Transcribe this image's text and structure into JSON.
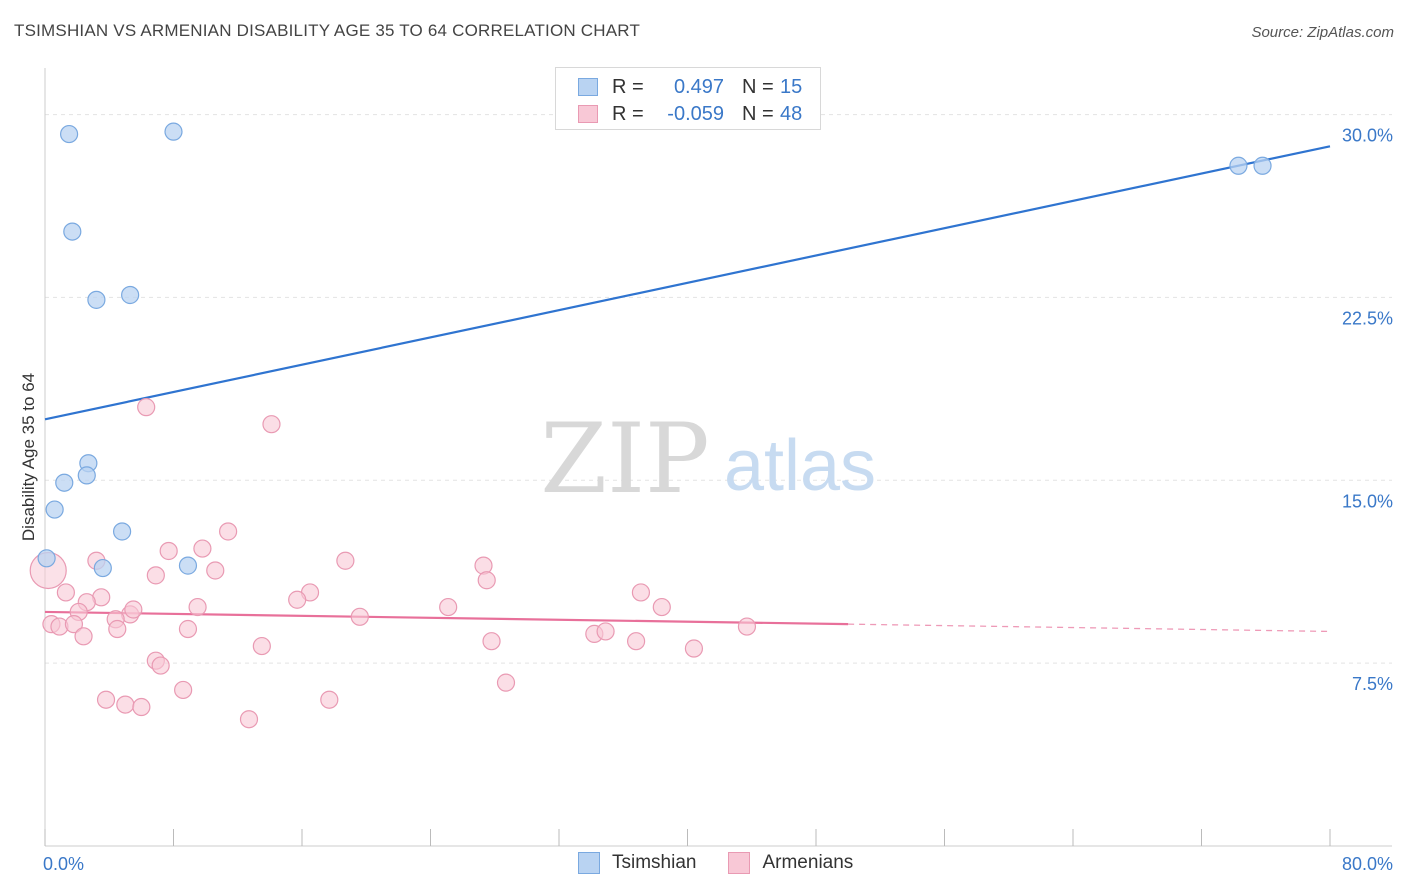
{
  "title": "TSIMSHIAN VS ARMENIAN DISABILITY AGE 35 TO 64 CORRELATION CHART",
  "source": "Source: ZipAtlas.com",
  "watermark": {
    "zip": "ZIP",
    "atlas": "atlas"
  },
  "legend": {
    "rows": [
      {
        "r_label": "R =",
        "r_value": "0.497",
        "n_label": "N =",
        "n_value": "15"
      },
      {
        "r_label": "R =",
        "r_value": "-0.059",
        "n_label": "N =",
        "n_value": "48"
      }
    ],
    "series": [
      "Tsimshian",
      "Armenians"
    ]
  },
  "colors": {
    "tsimshian_fill": "#b9d3f2",
    "tsimshian_stroke": "#7aa9e0",
    "tsimshian_line": "#2f74d0",
    "armenian_fill": "#f8c8d6",
    "armenian_stroke": "#e99ab3",
    "armenian_line": "#e8709a",
    "axis_label": "#3a78c8",
    "grid": "#e3e3e3"
  },
  "chart_data": {
    "type": "scatter",
    "title": "TSIMSHIAN VS ARMENIAN DISABILITY AGE 35 TO 64 CORRELATION CHART",
    "xlabel": "",
    "ylabel": "Disability Age 35 to 64",
    "xlim": [
      0,
      80
    ],
    "ylim": [
      0,
      31.5
    ],
    "x_tick_labels": [
      "0.0%",
      "80.0%"
    ],
    "y_ticks": [
      7.5,
      15.0,
      22.5,
      30.0
    ],
    "y_tick_labels": [
      "7.5%",
      "15.0%",
      "22.5%",
      "30.0%"
    ],
    "series": [
      {
        "name": "Tsimshian",
        "points": [
          [
            1.5,
            29.2
          ],
          [
            8.0,
            29.3
          ],
          [
            1.7,
            25.2
          ],
          [
            3.2,
            22.4
          ],
          [
            5.3,
            22.6
          ],
          [
            2.7,
            15.7
          ],
          [
            1.2,
            14.9
          ],
          [
            2.6,
            15.2
          ],
          [
            0.6,
            13.8
          ],
          [
            4.8,
            12.9
          ],
          [
            0.1,
            11.8
          ],
          [
            3.6,
            11.4
          ],
          [
            8.9,
            11.5
          ],
          [
            74.3,
            27.9
          ],
          [
            75.8,
            27.9
          ]
        ],
        "trend": {
          "x": [
            0,
            80
          ],
          "y": [
            17.5,
            28.7
          ]
        }
      },
      {
        "name": "Armenians",
        "points": [
          [
            0.2,
            11.3
          ],
          [
            6.3,
            18.0
          ],
          [
            14.1,
            17.3
          ],
          [
            11.4,
            12.9
          ],
          [
            9.8,
            12.2
          ],
          [
            7.7,
            12.1
          ],
          [
            3.2,
            11.7
          ],
          [
            18.7,
            11.7
          ],
          [
            10.6,
            11.3
          ],
          [
            6.9,
            11.1
          ],
          [
            27.3,
            11.5
          ],
          [
            27.5,
            10.9
          ],
          [
            1.3,
            10.4
          ],
          [
            3.5,
            10.2
          ],
          [
            16.5,
            10.4
          ],
          [
            15.7,
            10.1
          ],
          [
            37.1,
            10.4
          ],
          [
            2.6,
            10.0
          ],
          [
            9.5,
            9.8
          ],
          [
            25.1,
            9.8
          ],
          [
            38.4,
            9.8
          ],
          [
            0.4,
            9.1
          ],
          [
            0.9,
            9.0
          ],
          [
            2.1,
            9.6
          ],
          [
            5.3,
            9.5
          ],
          [
            5.5,
            9.7
          ],
          [
            4.4,
            9.3
          ],
          [
            19.6,
            9.4
          ],
          [
            1.8,
            9.1
          ],
          [
            4.5,
            8.9
          ],
          [
            8.9,
            8.9
          ],
          [
            2.4,
            8.6
          ],
          [
            34.2,
            8.7
          ],
          [
            34.9,
            8.8
          ],
          [
            43.7,
            9.0
          ],
          [
            13.5,
            8.2
          ],
          [
            27.8,
            8.4
          ],
          [
            36.8,
            8.4
          ],
          [
            40.4,
            8.1
          ],
          [
            6.9,
            7.6
          ],
          [
            7.2,
            7.4
          ],
          [
            8.6,
            6.4
          ],
          [
            3.8,
            6.0
          ],
          [
            5.0,
            5.8
          ],
          [
            6.0,
            5.7
          ],
          [
            17.7,
            6.0
          ],
          [
            28.7,
            6.7
          ],
          [
            12.7,
            5.2
          ]
        ],
        "trend": {
          "x": [
            0,
            50
          ],
          "y": [
            9.6,
            9.1
          ]
        },
        "trend_extension": {
          "x": [
            50,
            80
          ],
          "y": [
            9.1,
            8.8
          ]
        }
      }
    ]
  }
}
